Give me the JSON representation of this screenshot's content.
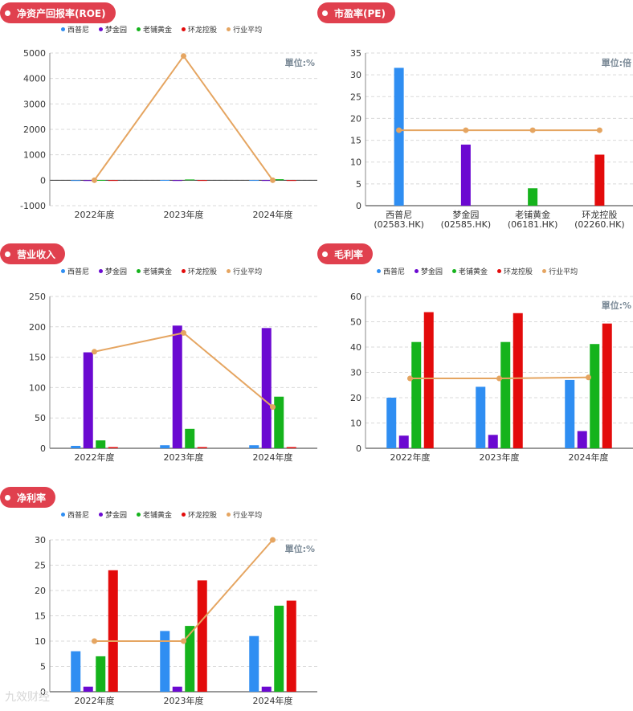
{
  "colors": {
    "series": [
      "#2f8ef2",
      "#6b09d1",
      "#15b31c",
      "#e30b0b",
      "#e5a561"
    ],
    "pill": "#e0404e",
    "unit": "#7b8a97"
  },
  "legend": [
    "西普尼",
    "梦金园",
    "老铺黄金",
    "环龙控股",
    "行业平均"
  ],
  "watermark": "九效财经",
  "chart_data": [
    {
      "id": "roe",
      "type": "bar",
      "title": "净资产回报率(ROE)",
      "unit": "單位:%",
      "categories": [
        "2022年度",
        "2023年度",
        "2024年度"
      ],
      "ylim": [
        -1000,
        5000
      ],
      "yticks": [
        -1000,
        0,
        1000,
        2000,
        3000,
        4000,
        5000
      ],
      "series": [
        {
          "name": "西普尼",
          "values": [
            5,
            10,
            8
          ]
        },
        {
          "name": "梦金园",
          "values": [
            3,
            4,
            5
          ]
        },
        {
          "name": "老铺黄金",
          "values": [
            10,
            30,
            40
          ]
        },
        {
          "name": "环龙控股",
          "values": [
            6,
            6,
            5
          ]
        }
      ],
      "line": {
        "name": "行业平均",
        "values": [
          0,
          4880,
          0
        ]
      }
    },
    {
      "id": "pe",
      "type": "bar",
      "title": "市盈率(PE)",
      "unit": "單位:倍",
      "categories": [
        "西普尼\n(02583.HK)",
        "梦金园\n(02585.HK)",
        "老铺黄金\n(06181.HK)",
        "环龙控股\n(02260.HK)"
      ],
      "ylim": [
        0,
        35
      ],
      "yticks": [
        0,
        5,
        10,
        15,
        20,
        25,
        30,
        35
      ],
      "single": true,
      "values": [
        31.6,
        14,
        4,
        11.7
      ],
      "line": {
        "name": "行业平均",
        "values": [
          17.3,
          17.3,
          17.3,
          17.3
        ]
      }
    },
    {
      "id": "revenue",
      "type": "bar",
      "title": "营业收入",
      "unit": "",
      "categories": [
        "2022年度",
        "2023年度",
        "2024年度"
      ],
      "ylim": [
        0,
        250
      ],
      "yticks": [
        0,
        50,
        100,
        150,
        200,
        250
      ],
      "series": [
        {
          "name": "西普尼",
          "values": [
            4,
            5,
            5
          ]
        },
        {
          "name": "梦金园",
          "values": [
            158,
            202,
            198
          ]
        },
        {
          "name": "老铺黄金",
          "values": [
            13,
            32,
            85
          ]
        },
        {
          "name": "环龙控股",
          "values": [
            2,
            2,
            2
          ]
        }
      ],
      "line": {
        "name": "行业平均",
        "values": [
          159,
          190,
          68
        ]
      }
    },
    {
      "id": "gross",
      "type": "bar",
      "title": "毛利率",
      "unit": "單位:%",
      "categories": [
        "2022年度",
        "2023年度",
        "2024年度"
      ],
      "ylim": [
        0,
        60
      ],
      "yticks": [
        0,
        10,
        20,
        30,
        40,
        50,
        60
      ],
      "series": [
        {
          "name": "西普尼",
          "values": [
            20,
            24.3,
            27
          ]
        },
        {
          "name": "梦金园",
          "values": [
            5,
            5.3,
            6.8
          ]
        },
        {
          "name": "老铺黄金",
          "values": [
            42,
            42,
            41.2
          ]
        },
        {
          "name": "环龙控股",
          "values": [
            53.8,
            53.4,
            49.3
          ]
        }
      ],
      "line": {
        "name": "行业平均",
        "values": [
          27.6,
          27.6,
          28
        ]
      }
    },
    {
      "id": "net",
      "type": "bar",
      "title": "净利率",
      "unit": "單位:%",
      "categories": [
        "2022年度",
        "2023年度",
        "2024年度"
      ],
      "ylim": [
        0,
        30
      ],
      "yticks": [
        0,
        5,
        10,
        15,
        20,
        25,
        30
      ],
      "series": [
        {
          "name": "西普尼",
          "values": [
            8,
            12,
            11
          ]
        },
        {
          "name": "梦金园",
          "values": [
            1,
            1,
            1
          ]
        },
        {
          "name": "老铺黄金",
          "values": [
            7,
            13,
            17
          ]
        },
        {
          "name": "环龙控股",
          "values": [
            24,
            22,
            18
          ]
        }
      ],
      "line": {
        "name": "行业平均",
        "values": [
          10,
          10,
          30
        ]
      }
    }
  ]
}
